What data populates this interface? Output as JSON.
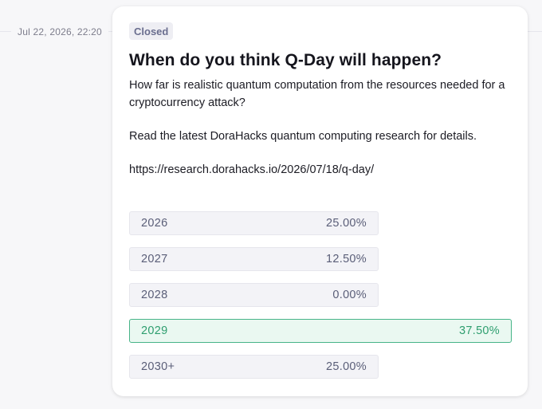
{
  "timestamp": "Jul 22, 2026, 22:20",
  "poll": {
    "status": "Closed",
    "question": "When do you think Q-Day will happen?",
    "description": [
      "How far is realistic quantum computation from the resources needed for a cryptocurrency attack?",
      "Read the latest DoraHacks quantum computing research for details.",
      "https://research.dorahacks.io/2026/07/18/q-day/"
    ],
    "options": [
      {
        "label": "2026",
        "percent": "25.00%",
        "winner": false
      },
      {
        "label": "2027",
        "percent": "12.50%",
        "winner": false
      },
      {
        "label": "2028",
        "percent": "0.00%",
        "winner": false
      },
      {
        "label": "2029",
        "percent": "37.50%",
        "winner": true
      },
      {
        "label": "2030+",
        "percent": "25.00%",
        "winner": false
      }
    ]
  },
  "colors": {
    "winner_text": "#2e9e6f",
    "winner_border": "#47b488",
    "option_bg": "#f3f3f7"
  }
}
